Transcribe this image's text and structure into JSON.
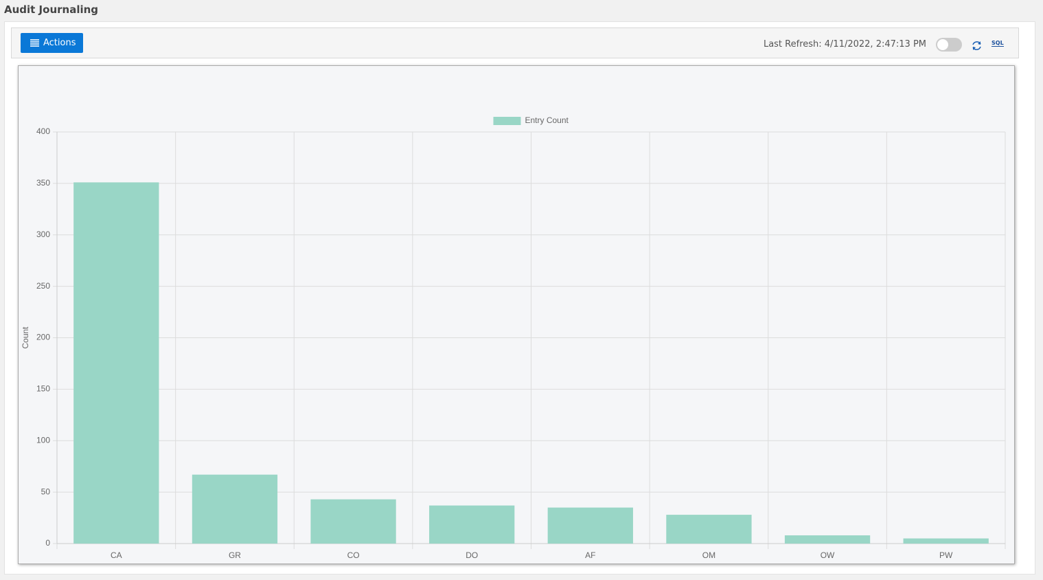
{
  "header": {
    "title": "Audit Journaling"
  },
  "toolbar": {
    "actions": "Actions",
    "last_refresh": "Last Refresh: 4/11/2022, 2:47:13 PM",
    "sql_label": "SQL"
  },
  "chart_data": {
    "type": "bar",
    "y_label": "Count",
    "categories": [
      "CA",
      "GR",
      "CO",
      "DO",
      "AF",
      "OM",
      "OW",
      "PW"
    ],
    "series": [
      {
        "name": "Entry Count",
        "color": "#99d6c6",
        "values": [
          351,
          67,
          43,
          37,
          35,
          28,
          8,
          5
        ]
      }
    ],
    "ylim": [
      0,
      400
    ],
    "yticks": [
      0,
      50,
      100,
      150,
      200,
      250,
      300,
      350,
      400
    ],
    "grid": true,
    "legend": "top"
  }
}
